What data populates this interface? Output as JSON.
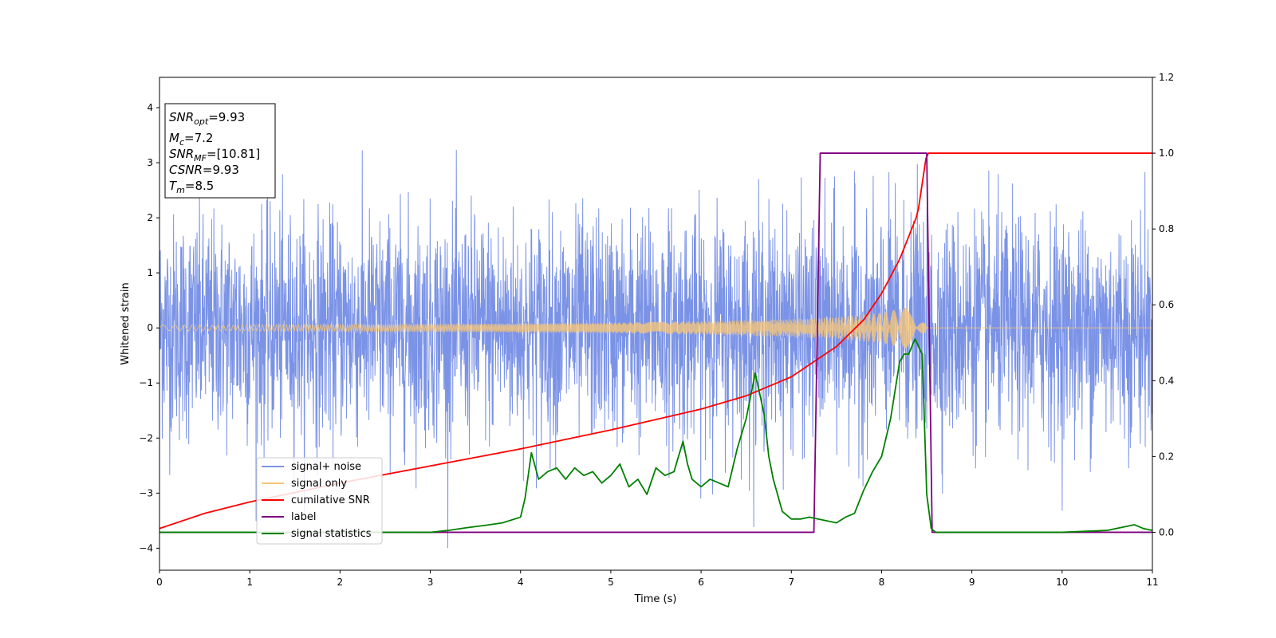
{
  "chart_data": {
    "type": "line",
    "xlabel": "Time (s)",
    "ylabel_left": "Whitened strain",
    "ylabel_right": "",
    "xlim": [
      0,
      11
    ],
    "ylim_left": [
      -4.4,
      4.55
    ],
    "ylim_right": [
      -0.1,
      1.2
    ],
    "x_ticks": [
      0,
      1,
      2,
      3,
      4,
      5,
      6,
      7,
      8,
      9,
      10,
      11
    ],
    "y_left_ticks": [
      -4,
      -3,
      -2,
      -1,
      0,
      1,
      2,
      3,
      4
    ],
    "y_right_ticks": [
      0.0,
      0.2,
      0.4,
      0.6,
      0.8,
      1.0,
      1.2
    ],
    "annotation": [
      {
        "base": "SNR",
        "sub": "opt",
        "rest": "=9.93"
      },
      {
        "base": "M",
        "sub": "c",
        "rest": "=7.2"
      },
      {
        "base": "SNR",
        "sub": "MF",
        "rest": "=[10.81]"
      },
      {
        "base": "CSNR",
        "sub": "",
        "rest": "=9.93"
      },
      {
        "base": "T",
        "sub": "m",
        "rest": "=8.5"
      }
    ],
    "legend": {
      "placement": "lower-left",
      "entries": [
        {
          "label": "signal+ noise",
          "color": "#7b93e6"
        },
        {
          "label": "signal only",
          "color": "#f5c57a"
        },
        {
          "label": "cumilative SNR",
          "color": "#ff0000"
        },
        {
          "label": "label",
          "color": "#800080"
        },
        {
          "label": "signal statistics",
          "color": "#008000"
        }
      ]
    },
    "series": [
      {
        "name": "signal+ noise",
        "axis": "left",
        "color": "#7b93e6",
        "description_stats": {
          "noise_std": 1.0,
          "range": [
            -4.0,
            4.1
          ]
        }
      },
      {
        "name": "signal only",
        "axis": "left",
        "color": "#f5c57a",
        "envelope": {
          "x": [
            0,
            1,
            2,
            3,
            4,
            5,
            6,
            7,
            7.5,
            8,
            8.3,
            8.45,
            8.5
          ],
          "amp": [
            0.05,
            0.055,
            0.06,
            0.07,
            0.08,
            0.095,
            0.12,
            0.16,
            0.2,
            0.28,
            0.38,
            0.6,
            1.0
          ]
        },
        "zero_after": 8.5
      },
      {
        "name": "cumilative SNR",
        "axis": "right",
        "color": "#ff0000",
        "x": [
          0,
          0.5,
          1,
          2,
          3,
          4,
          5,
          6,
          6.5,
          7,
          7.5,
          7.8,
          8.0,
          8.2,
          8.4,
          8.5,
          11
        ],
        "y": [
          0.01,
          0.05,
          0.08,
          0.13,
          0.175,
          0.22,
          0.27,
          0.325,
          0.36,
          0.41,
          0.49,
          0.56,
          0.63,
          0.72,
          0.84,
          1.0,
          1.0
        ]
      },
      {
        "name": "label",
        "axis": "right",
        "color": "#800080",
        "x": [
          0,
          7.25,
          7.32,
          8.5,
          8.56,
          11
        ],
        "y": [
          0,
          0,
          1,
          1,
          0,
          0
        ]
      },
      {
        "name": "signal statistics",
        "axis": "right",
        "color": "#008000",
        "x": [
          0,
          1,
          2,
          3,
          3.2,
          3.4,
          3.6,
          3.8,
          4.0,
          4.05,
          4.12,
          4.2,
          4.3,
          4.4,
          4.5,
          4.6,
          4.7,
          4.8,
          4.9,
          5.0,
          5.1,
          5.2,
          5.3,
          5.4,
          5.5,
          5.6,
          5.7,
          5.8,
          5.85,
          5.9,
          6.0,
          6.1,
          6.2,
          6.3,
          6.4,
          6.5,
          6.6,
          6.7,
          6.75,
          6.8,
          6.9,
          7.0,
          7.1,
          7.2,
          7.3,
          7.4,
          7.5,
          7.6,
          7.7,
          7.8,
          7.9,
          8.0,
          8.1,
          8.2,
          8.25,
          8.3,
          8.37,
          8.45,
          8.5,
          8.55,
          8.6,
          9.0,
          10.0,
          10.5,
          10.8,
          10.9,
          11.0
        ],
        "y": [
          0,
          0,
          0,
          0,
          0.005,
          0.012,
          0.018,
          0.025,
          0.04,
          0.09,
          0.21,
          0.14,
          0.16,
          0.17,
          0.14,
          0.17,
          0.15,
          0.16,
          0.13,
          0.15,
          0.18,
          0.12,
          0.14,
          0.1,
          0.17,
          0.15,
          0.16,
          0.24,
          0.18,
          0.14,
          0.12,
          0.14,
          0.13,
          0.12,
          0.22,
          0.3,
          0.42,
          0.31,
          0.2,
          0.14,
          0.055,
          0.035,
          0.035,
          0.04,
          0.035,
          0.03,
          0.025,
          0.04,
          0.05,
          0.11,
          0.16,
          0.2,
          0.3,
          0.45,
          0.47,
          0.47,
          0.51,
          0.47,
          0.1,
          0.01,
          0.0,
          0.0,
          0.0,
          0.005,
          0.02,
          0.01,
          0.005
        ]
      }
    ]
  }
}
